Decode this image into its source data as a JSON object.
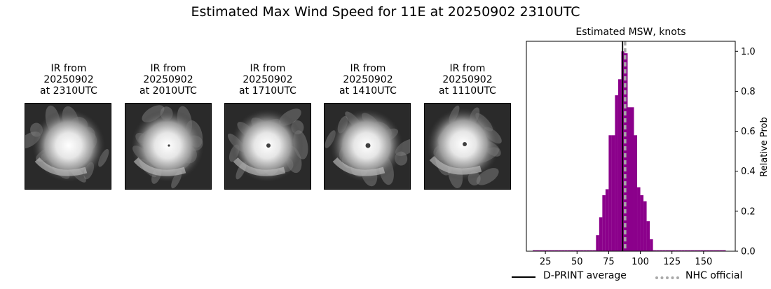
{
  "title": "Estimated Max Wind Speed for 11E at 20250902 2310UTC",
  "panels": [
    {
      "caption": "IR from\n20250902\nat 2310UTC",
      "eye": "none"
    },
    {
      "caption": "IR from\n20250902\nat 2010UTC",
      "eye": "pinhole"
    },
    {
      "caption": "IR from\n20250902\nat 1710UTC",
      "eye": "faint"
    },
    {
      "caption": "IR from\n20250902\nat 1410UTC",
      "eye": "small"
    },
    {
      "caption": "IR from\n20250902\nat 1110UTC",
      "eye": "faint"
    }
  ],
  "colors": {
    "bars": "#8b008b",
    "dprint_line": "#000000",
    "nhc_line": "#a9a9a9"
  },
  "chart_data": {
    "type": "bar",
    "title": "Estimated MSW, knots",
    "xlabel": "",
    "ylabel": "Relative Prob",
    "xlim": [
      10,
      175
    ],
    "ylim": [
      0,
      1.05
    ],
    "xticks": [
      25,
      50,
      75,
      100,
      125,
      150
    ],
    "yticks": [
      0.0,
      0.2,
      0.4,
      0.6,
      0.8,
      1.0
    ],
    "ytick_labels": [
      "0.0",
      "0.2",
      "0.4",
      "0.6",
      "0.8",
      "1.0"
    ],
    "bin_width": 2.5,
    "bins": [
      {
        "x": 15,
        "v": 0.005
      },
      {
        "x": 17.5,
        "v": 0.005
      },
      {
        "x": 20,
        "v": 0.005
      },
      {
        "x": 22.5,
        "v": 0.005
      },
      {
        "x": 25,
        "v": 0.005
      },
      {
        "x": 27.5,
        "v": 0.005
      },
      {
        "x": 30,
        "v": 0.005
      },
      {
        "x": 32.5,
        "v": 0.005
      },
      {
        "x": 35,
        "v": 0.005
      },
      {
        "x": 37.5,
        "v": 0.005
      },
      {
        "x": 40,
        "v": 0.005
      },
      {
        "x": 42.5,
        "v": 0.005
      },
      {
        "x": 45,
        "v": 0.005
      },
      {
        "x": 47.5,
        "v": 0.005
      },
      {
        "x": 50,
        "v": 0.005
      },
      {
        "x": 52.5,
        "v": 0.005
      },
      {
        "x": 55,
        "v": 0.005
      },
      {
        "x": 57.5,
        "v": 0.005
      },
      {
        "x": 60,
        "v": 0.005
      },
      {
        "x": 62.5,
        "v": 0.005
      },
      {
        "x": 65,
        "v": 0.08
      },
      {
        "x": 67.5,
        "v": 0.17
      },
      {
        "x": 70,
        "v": 0.28
      },
      {
        "x": 72.5,
        "v": 0.31
      },
      {
        "x": 75,
        "v": 0.58
      },
      {
        "x": 77.5,
        "v": 0.58
      },
      {
        "x": 80,
        "v": 0.78
      },
      {
        "x": 82.5,
        "v": 0.86
      },
      {
        "x": 85,
        "v": 1.0
      },
      {
        "x": 87.5,
        "v": 0.99
      },
      {
        "x": 90,
        "v": 0.72
      },
      {
        "x": 92.5,
        "v": 0.72
      },
      {
        "x": 95,
        "v": 0.58
      },
      {
        "x": 97.5,
        "v": 0.32
      },
      {
        "x": 100,
        "v": 0.28
      },
      {
        "x": 102.5,
        "v": 0.25
      },
      {
        "x": 105,
        "v": 0.15
      },
      {
        "x": 107.5,
        "v": 0.06
      },
      {
        "x": 110,
        "v": 0.005
      },
      {
        "x": 112.5,
        "v": 0.005
      },
      {
        "x": 115,
        "v": 0.005
      },
      {
        "x": 117.5,
        "v": 0.005
      },
      {
        "x": 120,
        "v": 0.005
      },
      {
        "x": 122.5,
        "v": 0.005
      },
      {
        "x": 125,
        "v": 0.005
      },
      {
        "x": 127.5,
        "v": 0.005
      },
      {
        "x": 130,
        "v": 0.005
      },
      {
        "x": 132.5,
        "v": 0.005
      },
      {
        "x": 135,
        "v": 0.005
      },
      {
        "x": 137.5,
        "v": 0.005
      },
      {
        "x": 140,
        "v": 0.005
      },
      {
        "x": 142.5,
        "v": 0.005
      },
      {
        "x": 145,
        "v": 0.005
      },
      {
        "x": 147.5,
        "v": 0.005
      },
      {
        "x": 150,
        "v": 0.005
      },
      {
        "x": 152.5,
        "v": 0.005
      },
      {
        "x": 155,
        "v": 0.005
      },
      {
        "x": 157.5,
        "v": 0.005
      },
      {
        "x": 160,
        "v": 0.005
      },
      {
        "x": 162.5,
        "v": 0.005
      },
      {
        "x": 165,
        "v": 0.005
      }
    ],
    "dprint_average": 86,
    "nhc_official": 88,
    "legend": {
      "position": "bottom",
      "entries": [
        "D-PRINT average",
        "NHC official"
      ]
    }
  }
}
